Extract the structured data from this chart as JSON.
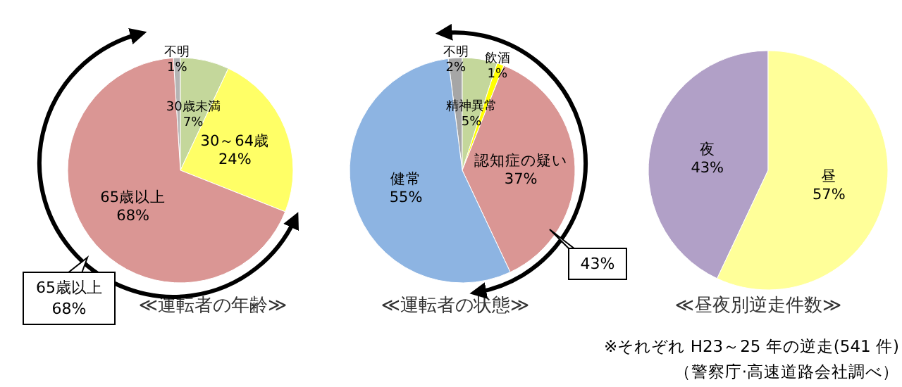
{
  "chart_data": [
    {
      "type": "pie",
      "title": "≪運転者の年齢≫",
      "categories": [
        "不明",
        "30歳未満",
        "30～64歳",
        "65歳以上"
      ],
      "values": [
        1,
        7,
        24,
        68
      ],
      "value_labels": [
        "1%",
        "7%",
        "24%",
        "68%"
      ],
      "colors": [
        "#b4b4b4",
        "#c4d79b",
        "#ffff66",
        "#da9694"
      ],
      "data_labels": true,
      "legend": false,
      "annotations": [
        "65歳以上 68%"
      ]
    },
    {
      "type": "pie",
      "title": "≪運転者の状態≫",
      "categories": [
        "不明",
        "精神異常",
        "飲酒",
        "認知症の疑い",
        "健常"
      ],
      "values": [
        2,
        5,
        1,
        37,
        55
      ],
      "value_labels": [
        "2%",
        "5%",
        "1%",
        "37%",
        "55%"
      ],
      "colors": [
        "#a6a6a6",
        "#c4d79b",
        "#ffff00",
        "#da9694",
        "#8db4e2"
      ],
      "data_labels": true,
      "legend": false,
      "annotations": [
        "43%"
      ]
    },
    {
      "type": "pie",
      "title": "≪昼夜別逆走件数≫",
      "categories": [
        "夜",
        "昼"
      ],
      "values": [
        43,
        57
      ],
      "value_labels": [
        "43%",
        "57%"
      ],
      "colors": [
        "#b1a0c7",
        "#ffff99"
      ],
      "data_labels": true,
      "legend": false,
      "annotations": [
        "※それぞれ H23～25 年の逆走(541 件)",
        "（警察庁·高速道路会社調べ）"
      ]
    }
  ]
}
